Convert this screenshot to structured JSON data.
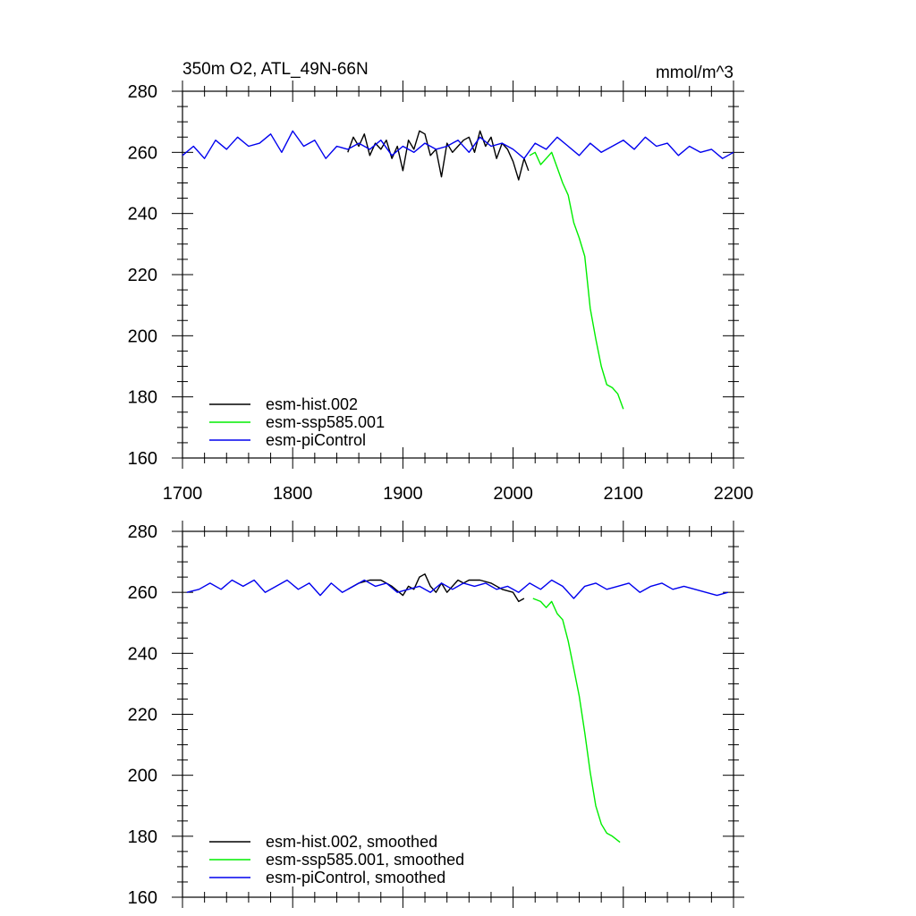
{
  "figure": {
    "title_left": "350m O2, ATL_49N-66N",
    "title_right": "mmol/m^3"
  },
  "colors": {
    "hist": "#000000",
    "ssp": "#00ee00",
    "picontrol": "#0000ee"
  },
  "chart_data": [
    {
      "type": "line",
      "title": "350m O2, ATL_49N-66N",
      "units": "mmol/m^3",
      "xlim": [
        1700,
        2200
      ],
      "ylim": [
        160,
        280
      ],
      "x_ticks": [
        1700,
        1800,
        1900,
        2000,
        2100,
        2200
      ],
      "y_ticks": [
        160,
        180,
        200,
        220,
        240,
        260,
        280
      ],
      "legend_position": "bottom-left",
      "series": [
        {
          "name": "esm-hist.002",
          "color": "#000000",
          "x": [
            1850,
            1855,
            1860,
            1865,
            1870,
            1875,
            1880,
            1885,
            1890,
            1895,
            1900,
            1905,
            1910,
            1915,
            1920,
            1925,
            1930,
            1935,
            1940,
            1945,
            1950,
            1955,
            1960,
            1965,
            1970,
            1975,
            1980,
            1985,
            1990,
            1995,
            2000,
            2005,
            2010,
            2014
          ],
          "y": [
            260,
            265,
            262,
            266,
            259,
            263,
            261,
            264,
            258,
            262,
            254,
            264,
            261,
            267,
            266,
            259,
            261,
            252,
            263,
            260,
            262,
            264,
            265,
            260,
            267,
            262,
            265,
            258,
            263,
            261,
            257,
            251,
            258,
            254
          ]
        },
        {
          "name": "esm-ssp585.001",
          "color": "#00ee00",
          "x": [
            2015,
            2020,
            2025,
            2030,
            2035,
            2040,
            2045,
            2050,
            2055,
            2060,
            2065,
            2070,
            2075,
            2080,
            2085,
            2090,
            2095,
            2100
          ],
          "y": [
            259,
            260,
            256,
            258,
            260,
            255,
            250,
            246,
            237,
            232,
            226,
            209,
            199,
            190,
            184,
            183,
            181,
            176
          ]
        },
        {
          "name": "esm-piControl",
          "color": "#0000ee",
          "x": [
            1700,
            1710,
            1720,
            1730,
            1740,
            1750,
            1760,
            1770,
            1780,
            1790,
            1800,
            1810,
            1820,
            1830,
            1840,
            1850,
            1860,
            1870,
            1880,
            1890,
            1900,
            1910,
            1920,
            1930,
            1940,
            1950,
            1960,
            1970,
            1980,
            1990,
            2000,
            2010,
            2020,
            2030,
            2040,
            2050,
            2060,
            2070,
            2080,
            2090,
            2100,
            2110,
            2120,
            2130,
            2140,
            2150,
            2160,
            2170,
            2180,
            2190,
            2200
          ],
          "y": [
            259,
            262,
            258,
            264,
            261,
            265,
            262,
            263,
            266,
            260,
            267,
            262,
            264,
            258,
            262,
            261,
            263,
            261,
            264,
            259,
            262,
            260,
            263,
            261,
            262,
            264,
            260,
            265,
            262,
            263,
            261,
            258,
            263,
            261,
            265,
            262,
            259,
            263,
            260,
            262,
            264,
            261,
            265,
            262,
            263,
            259,
            262,
            260,
            261,
            258,
            260
          ]
        }
      ]
    },
    {
      "type": "line",
      "xlim": [
        1700,
        2200
      ],
      "ylim": [
        160,
        280
      ],
      "y_ticks": [
        160,
        180,
        200,
        220,
        240,
        260,
        280
      ],
      "legend_position": "bottom-left",
      "series": [
        {
          "name": "esm-hist.002, smoothed",
          "color": "#000000",
          "x": [
            1850,
            1860,
            1870,
            1880,
            1890,
            1900,
            1905,
            1910,
            1915,
            1920,
            1925,
            1930,
            1935,
            1940,
            1945,
            1950,
            1955,
            1960,
            1970,
            1980,
            1990,
            2000,
            2005,
            2010
          ],
          "y": [
            261,
            263,
            264,
            264,
            262,
            259,
            262,
            261,
            265,
            266,
            262,
            260,
            263,
            260,
            262,
            264,
            263,
            264,
            264,
            263,
            261,
            260,
            257,
            258
          ]
        },
        {
          "name": "esm-ssp585.001, smoothed",
          "color": "#00ee00",
          "x": [
            2018,
            2025,
            2030,
            2035,
            2040,
            2045,
            2050,
            2055,
            2060,
            2065,
            2070,
            2075,
            2080,
            2085,
            2090,
            2097
          ],
          "y": [
            258,
            257,
            255,
            257,
            253,
            251,
            244,
            235,
            226,
            214,
            201,
            190,
            184,
            181,
            180,
            178
          ]
        },
        {
          "name": "esm-piControl, smoothed",
          "color": "#0000ee",
          "x": [
            1704,
            1715,
            1725,
            1735,
            1745,
            1755,
            1765,
            1775,
            1785,
            1795,
            1805,
            1815,
            1825,
            1835,
            1845,
            1855,
            1865,
            1875,
            1885,
            1895,
            1905,
            1915,
            1925,
            1935,
            1945,
            1955,
            1965,
            1975,
            1985,
            1995,
            2005,
            2015,
            2025,
            2035,
            2045,
            2055,
            2065,
            2075,
            2085,
            2095,
            2105,
            2115,
            2125,
            2135,
            2145,
            2155,
            2165,
            2175,
            2185,
            2195
          ],
          "y": [
            260,
            261,
            263,
            261,
            264,
            262,
            264,
            260,
            262,
            264,
            261,
            263,
            259,
            263,
            260,
            262,
            264,
            262,
            263,
            260,
            261,
            262,
            260,
            263,
            261,
            263,
            262,
            263,
            261,
            262,
            260,
            263,
            261,
            264,
            262,
            258,
            262,
            263,
            261,
            262,
            263,
            260,
            262,
            263,
            261,
            262,
            261,
            260,
            259,
            260
          ]
        }
      ]
    }
  ]
}
